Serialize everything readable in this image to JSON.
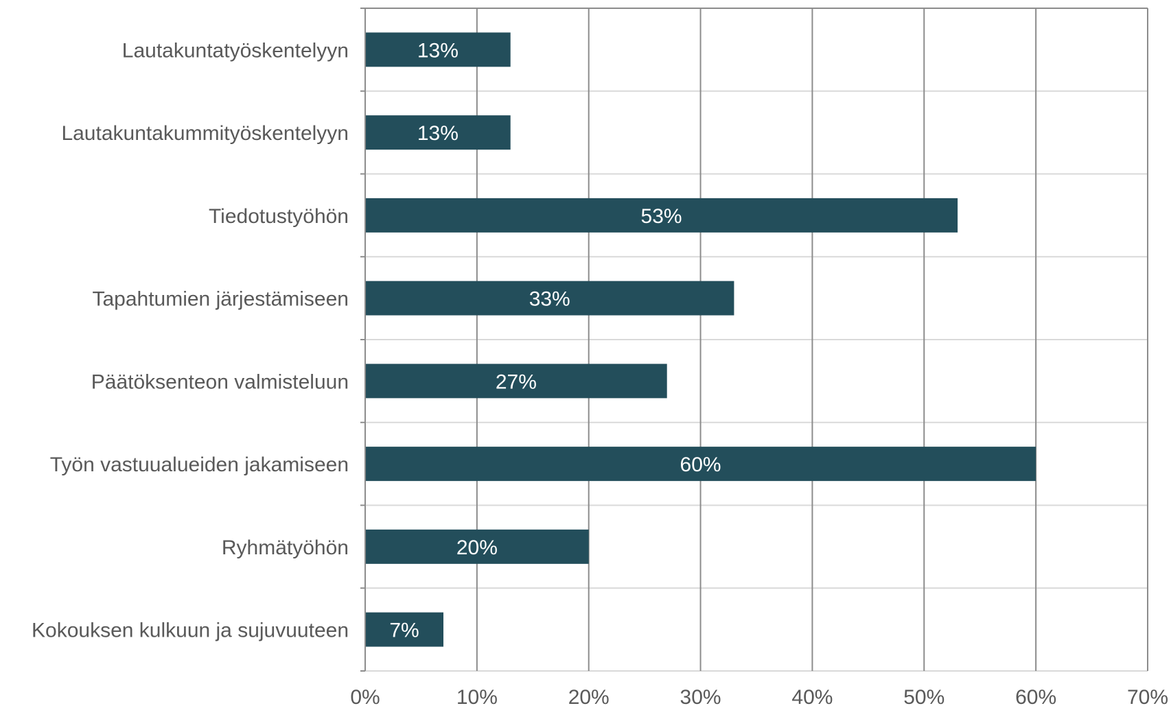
{
  "chart_data": {
    "type": "bar",
    "orientation": "horizontal",
    "categories": [
      "Lautakuntatyöskentelyyn",
      "Lautakuntakummityöskentelyyn",
      "Tiedotustyöhön",
      "Tapahtumien järjestämiseen",
      "Päätöksenteon valmisteluun",
      "Työn vastuualueiden jakamiseen",
      "Ryhmätyöhön",
      "Kokouksen kulkuun ja sujuvuuteen"
    ],
    "values": [
      13,
      13,
      53,
      33,
      27,
      60,
      20,
      7
    ],
    "data_labels": [
      "13%",
      "13%",
      "53%",
      "33%",
      "27%",
      "60%",
      "20%",
      "7%"
    ],
    "x_ticks": [
      "0%",
      "10%",
      "20%",
      "30%",
      "40%",
      "50%",
      "60%",
      "70%"
    ],
    "xlim": [
      0,
      70
    ],
    "title": "",
    "xlabel": "",
    "ylabel": "",
    "grid": true,
    "legend": "none",
    "colors": {
      "bar": "#234e5b",
      "gridline_major": "#8c8c8c",
      "gridline_minor": "#d9d9d9",
      "axis": "#8c8c8c",
      "label_text": "#595959",
      "data_label_text": "#ffffff"
    }
  }
}
